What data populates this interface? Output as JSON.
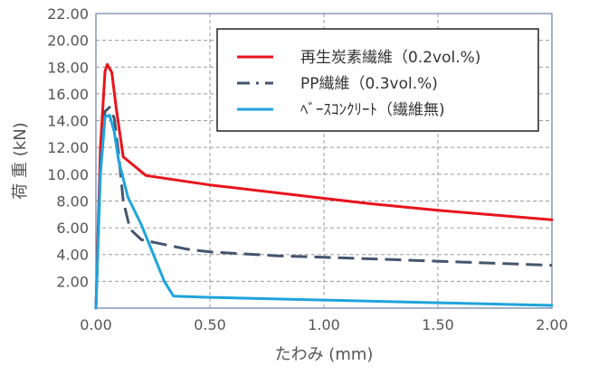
{
  "chart_data": {
    "type": "line",
    "title": "",
    "xlabel": "たわみ (mm)",
    "ylabel": "荷 重 (kN)",
    "xlim": [
      0,
      2.0
    ],
    "ylim": [
      0,
      22.0
    ],
    "x_ticks": [
      "0.00",
      "0.50",
      "1.00",
      "1.50",
      "2.00"
    ],
    "y_ticks": [
      "2.00",
      "4.00",
      "6.00",
      "8.00",
      "10.00",
      "12.00",
      "14.00",
      "16.00",
      "18.00",
      "20.00",
      "22.00"
    ],
    "grid": true,
    "legend_position": "top-right",
    "series": [
      {
        "name": "再生炭素繊維（0.2vol.%)",
        "color": "#e8141c",
        "style": "solid",
        "points": [
          [
            0,
            0
          ],
          [
            0.02,
            12.0
          ],
          [
            0.04,
            17.7
          ],
          [
            0.05,
            18.2
          ],
          [
            0.07,
            17.6
          ],
          [
            0.09,
            14.8
          ],
          [
            0.12,
            11.3
          ],
          [
            0.22,
            9.9
          ],
          [
            0.5,
            9.2
          ],
          [
            1.0,
            8.2
          ],
          [
            1.2,
            7.8
          ],
          [
            1.5,
            7.3
          ],
          [
            2.0,
            6.6
          ]
        ]
      },
      {
        "name": "PP繊維（0.3vol.%)",
        "color": "#44556e",
        "style": "dashed",
        "points": [
          [
            0,
            0
          ],
          [
            0.02,
            10.5
          ],
          [
            0.04,
            14.7
          ],
          [
            0.06,
            15.0
          ],
          [
            0.08,
            14.2
          ],
          [
            0.1,
            11.5
          ],
          [
            0.12,
            8.0
          ],
          [
            0.15,
            5.9
          ],
          [
            0.2,
            5.1
          ],
          [
            0.4,
            4.4
          ],
          [
            0.5,
            4.2
          ],
          [
            0.8,
            3.9
          ],
          [
            1.0,
            3.8
          ],
          [
            1.5,
            3.5
          ],
          [
            2.0,
            3.2
          ]
        ]
      },
      {
        "name": "ﾍﾞｰｽｺﾝｸﾘｰﾄ（繊維無)",
        "color": "#1ea4dc",
        "style": "solid",
        "points": [
          [
            0,
            0
          ],
          [
            0.02,
            10.0
          ],
          [
            0.04,
            14.3
          ],
          [
            0.06,
            14.4
          ],
          [
            0.08,
            13.2
          ],
          [
            0.1,
            11.0
          ],
          [
            0.14,
            8.3
          ],
          [
            0.2,
            6.2
          ],
          [
            0.3,
            2.0
          ],
          [
            0.34,
            0.9
          ],
          [
            0.5,
            0.8
          ],
          [
            1.0,
            0.6
          ],
          [
            1.5,
            0.4
          ],
          [
            2.0,
            0.2
          ]
        ]
      }
    ]
  }
}
